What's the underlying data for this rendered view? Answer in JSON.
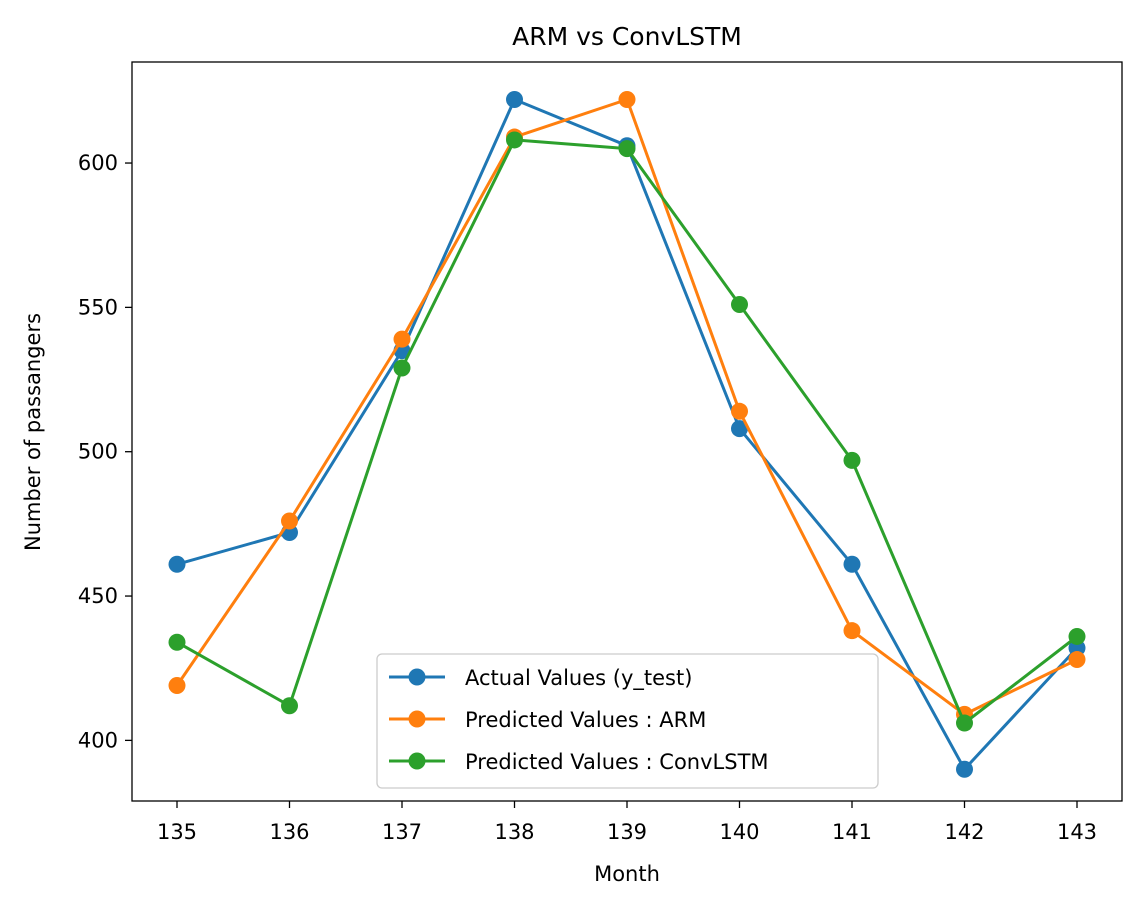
{
  "chart_data": {
    "type": "line",
    "title": "ARM vs ConvLSTM",
    "xlabel": "Month",
    "ylabel": "Number of passangers",
    "x": [
      135,
      136,
      137,
      138,
      139,
      140,
      141,
      142,
      143
    ],
    "xlim": [
      134.6,
      143.4
    ],
    "ylim": [
      379,
      635
    ],
    "yticks": [
      400,
      450,
      500,
      550,
      600
    ],
    "grid": false,
    "legend_position": "lower-center",
    "series": [
      {
        "name": "Actual Values (y_test)",
        "color": "#1f77b4",
        "marker": "circle",
        "values": [
          461,
          472,
          535,
          622,
          606,
          508,
          461,
          390,
          432
        ]
      },
      {
        "name": "Predicted Values : ARM",
        "color": "#ff7f0e",
        "marker": "circle",
        "values": [
          419,
          476,
          539,
          609,
          622,
          514,
          438,
          409,
          428
        ]
      },
      {
        "name": "Predicted Values : ConvLSTM",
        "color": "#2ca02c",
        "marker": "circle",
        "values": [
          434,
          412,
          529,
          608,
          605,
          551,
          497,
          406,
          436
        ]
      }
    ]
  }
}
